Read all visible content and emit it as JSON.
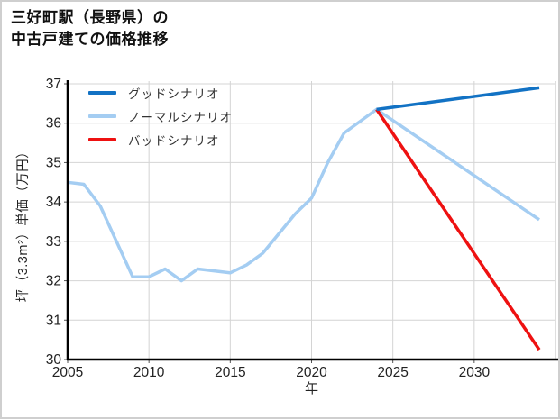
{
  "window": {
    "background": "#ffffff",
    "border_color": "#cfcfcf"
  },
  "title": {
    "line1": "三好町駅（長野県）の",
    "line2": "中古戸建ての価格推移"
  },
  "chart_data": {
    "type": "line",
    "title": "三好町駅（長野県）の中古戸建ての価格推移",
    "xlabel": "年",
    "ylabel": "坪（3.3m²）単価（万円）",
    "xlim": [
      2005,
      2035
    ],
    "ylim": [
      30,
      37
    ],
    "x_ticks": [
      "2005",
      "2010",
      "2015",
      "2020",
      "2025",
      "2030"
    ],
    "x_tick_values": [
      2005,
      2010,
      2015,
      2020,
      2025,
      2030
    ],
    "y_ticks": [
      "30",
      "31",
      "32",
      "33",
      "34",
      "35",
      "36",
      "37"
    ],
    "y_tick_values": [
      30,
      31,
      32,
      33,
      34,
      35,
      36,
      37
    ],
    "grid": true,
    "grid_color": "#d4d4d4",
    "spine_color": "#000000",
    "legend_position": "upper-left",
    "series": [
      {
        "name": "グッドシナリオ",
        "color": "#1272c4",
        "width": 3.5,
        "x": [
          2024,
          2034
        ],
        "y": [
          36.35,
          36.9
        ]
      },
      {
        "name": "ノーマルシナリオ",
        "color": "#a4cdf2",
        "width": 3.5,
        "x": [
          2005,
          2006,
          2007,
          2008,
          2009,
          2010,
          2011,
          2012,
          2013,
          2014,
          2015,
          2016,
          2017,
          2018,
          2019,
          2020,
          2021,
          2022,
          2023,
          2024,
          2034
        ],
        "y": [
          34.5,
          34.45,
          33.9,
          33.0,
          32.1,
          32.1,
          32.3,
          32.0,
          32.3,
          32.25,
          32.2,
          32.4,
          32.7,
          33.2,
          33.7,
          34.1,
          35.0,
          35.75,
          36.05,
          36.35,
          33.55
        ]
      },
      {
        "name": "バッドシナリオ",
        "color": "#ee1111",
        "width": 3.5,
        "x": [
          2024,
          2034
        ],
        "y": [
          36.35,
          30.25
        ]
      }
    ],
    "legend": [
      {
        "label": "グッドシナリオ",
        "color": "#1272c4"
      },
      {
        "label": "ノーマルシナリオ",
        "color": "#a4cdf2"
      },
      {
        "label": "バッドシナリオ",
        "color": "#ee1111"
      }
    ]
  }
}
